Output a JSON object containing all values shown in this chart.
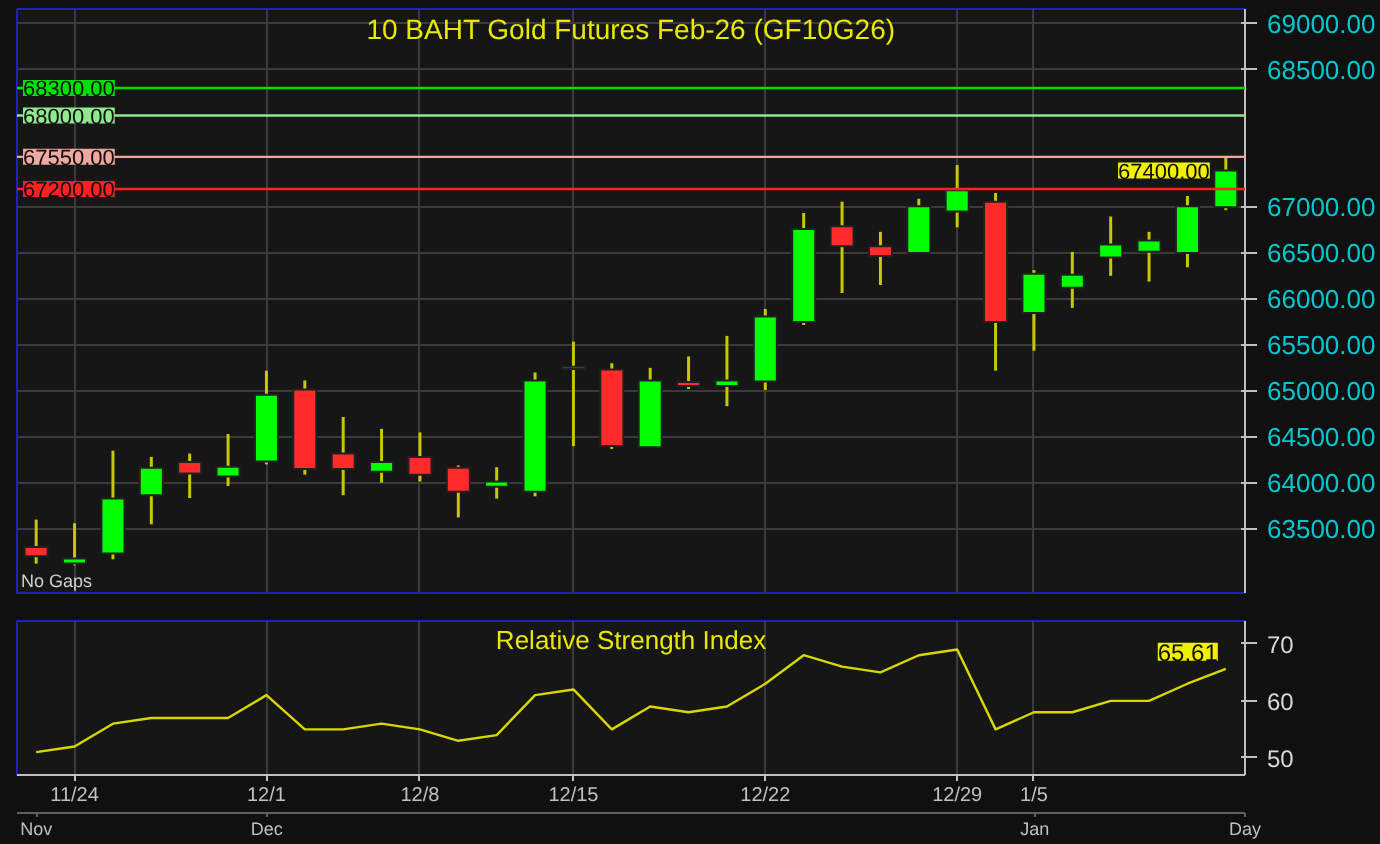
{
  "chart_data": [
    {
      "type": "candlestick",
      "title": "10 BAHT Gold Futures Feb-26 (GF10G26)",
      "categories": [
        null,
        null,
        null,
        null,
        null,
        null,
        null,
        null,
        null,
        null,
        null,
        null,
        null,
        null,
        null,
        null,
        null,
        null,
        null,
        null,
        null,
        null,
        null,
        null,
        null,
        null,
        null,
        null,
        null,
        null,
        null,
        null
      ],
      "ohlc": [
        [
          63300,
          63600,
          63120,
          63200
        ],
        [
          63120,
          63560,
          63100,
          63175
        ],
        [
          63231,
          64350,
          63168,
          63828
        ],
        [
          63865,
          64282,
          63548,
          64164
        ],
        [
          64226,
          64319,
          63834,
          64101
        ],
        [
          64070,
          64531,
          63965,
          64176
        ],
        [
          64232,
          65221,
          64201,
          64960
        ],
        [
          65016,
          65115,
          64089,
          64151
        ],
        [
          64319,
          64717,
          63865,
          64151
        ],
        [
          64120,
          64587,
          64002,
          64226
        ],
        [
          64282,
          64549,
          64014,
          64089
        ],
        [
          64164,
          64189,
          63623,
          63902
        ],
        [
          63958,
          64170,
          63828,
          64014
        ],
        [
          63902,
          65202,
          63853,
          65115
        ],
        [
          65240,
          65538,
          64400,
          65265
        ],
        [
          65234,
          65302,
          64369,
          64400
        ],
        [
          64388,
          65252,
          64388,
          65115
        ],
        [
          65097,
          65377,
          65022,
          65053
        ],
        [
          65053,
          65600,
          64835,
          65115
        ],
        [
          65103,
          65893,
          65010,
          65812
        ],
        [
          65750,
          66938,
          65719,
          66764
        ],
        [
          66795,
          67062,
          66067,
          66577
        ],
        [
          66577,
          66733,
          66154,
          66471
        ],
        [
          66502,
          67093,
          66502,
          67012
        ],
        [
          66956,
          67460,
          66782,
          67187
        ],
        [
          67062,
          67156,
          65221,
          65750
        ],
        [
          65849,
          66316,
          65439,
          66278
        ],
        [
          66123,
          66515,
          65905,
          66266
        ],
        [
          66453,
          66900,
          66254,
          66596
        ],
        [
          66515,
          66733,
          66191,
          66639
        ],
        [
          66502,
          67124,
          66347,
          67012
        ],
        [
          67000,
          67550,
          66969,
          67400
        ]
      ],
      "ylim": [
        62800,
        69160
      ],
      "yticks": [
        {
          "value": 63500,
          "label": "63500.00"
        },
        {
          "value": 64000,
          "label": "64000.00"
        },
        {
          "value": 64500,
          "label": "64500.00"
        },
        {
          "value": 65000,
          "label": "65000.00"
        },
        {
          "value": 65500,
          "label": "65500.00"
        },
        {
          "value": 66000,
          "label": "66000.00"
        },
        {
          "value": 66500,
          "label": "66500.00"
        },
        {
          "value": 67000,
          "label": "67000.00"
        },
        {
          "value": 68500,
          "label": "68500.00"
        },
        {
          "value": 69000,
          "label": "69000.00"
        }
      ],
      "ref_lines": [
        {
          "axis": "y",
          "value": 68300,
          "label": "68300.00",
          "color": "#00e000"
        },
        {
          "axis": "y",
          "value": 68000,
          "label": "68000.00",
          "color": "#90e890"
        },
        {
          "axis": "y",
          "value": 67550,
          "label": "67550.00",
          "color": "#f0a8a0"
        },
        {
          "axis": "y",
          "value": 67200,
          "label": "67200.00",
          "color": "#ff2020"
        }
      ],
      "annotations": [
        "67400.00",
        "No Gaps"
      ],
      "grid": true
    },
    {
      "type": "line",
      "title": "Relative Strength Index",
      "categories": [
        null,
        "11/24",
        null,
        null,
        null,
        null,
        "12/1",
        null,
        null,
        null,
        "12/8",
        null,
        null,
        null,
        "12/15",
        null,
        null,
        null,
        null,
        "12/22",
        null,
        null,
        null,
        null,
        "12/29",
        null,
        "1/5",
        null,
        null,
        null,
        null,
        null
      ],
      "series": [
        {
          "color": "#d8d800",
          "values": [
            51,
            52,
            56,
            57,
            57,
            57,
            61,
            55,
            55,
            56,
            55,
            53,
            54,
            61,
            62,
            55,
            59,
            58,
            59,
            63,
            68,
            66,
            65,
            68,
            69,
            55,
            58,
            58,
            60,
            60,
            63,
            65.61
          ],
          "value_labels": [
            null,
            null,
            null,
            null,
            null,
            null,
            null,
            null,
            null,
            null,
            null,
            null,
            null,
            null,
            null,
            null,
            null,
            null,
            null,
            null,
            null,
            null,
            null,
            null,
            null,
            null,
            null,
            null,
            null,
            null,
            null,
            "65.61"
          ]
        }
      ],
      "ylim": [
        47,
        74
      ],
      "yticks": [
        50,
        60,
        70
      ],
      "annotations": [
        "Nov",
        "Dec",
        "Jan",
        "Day"
      ],
      "grid": "x"
    }
  ]
}
